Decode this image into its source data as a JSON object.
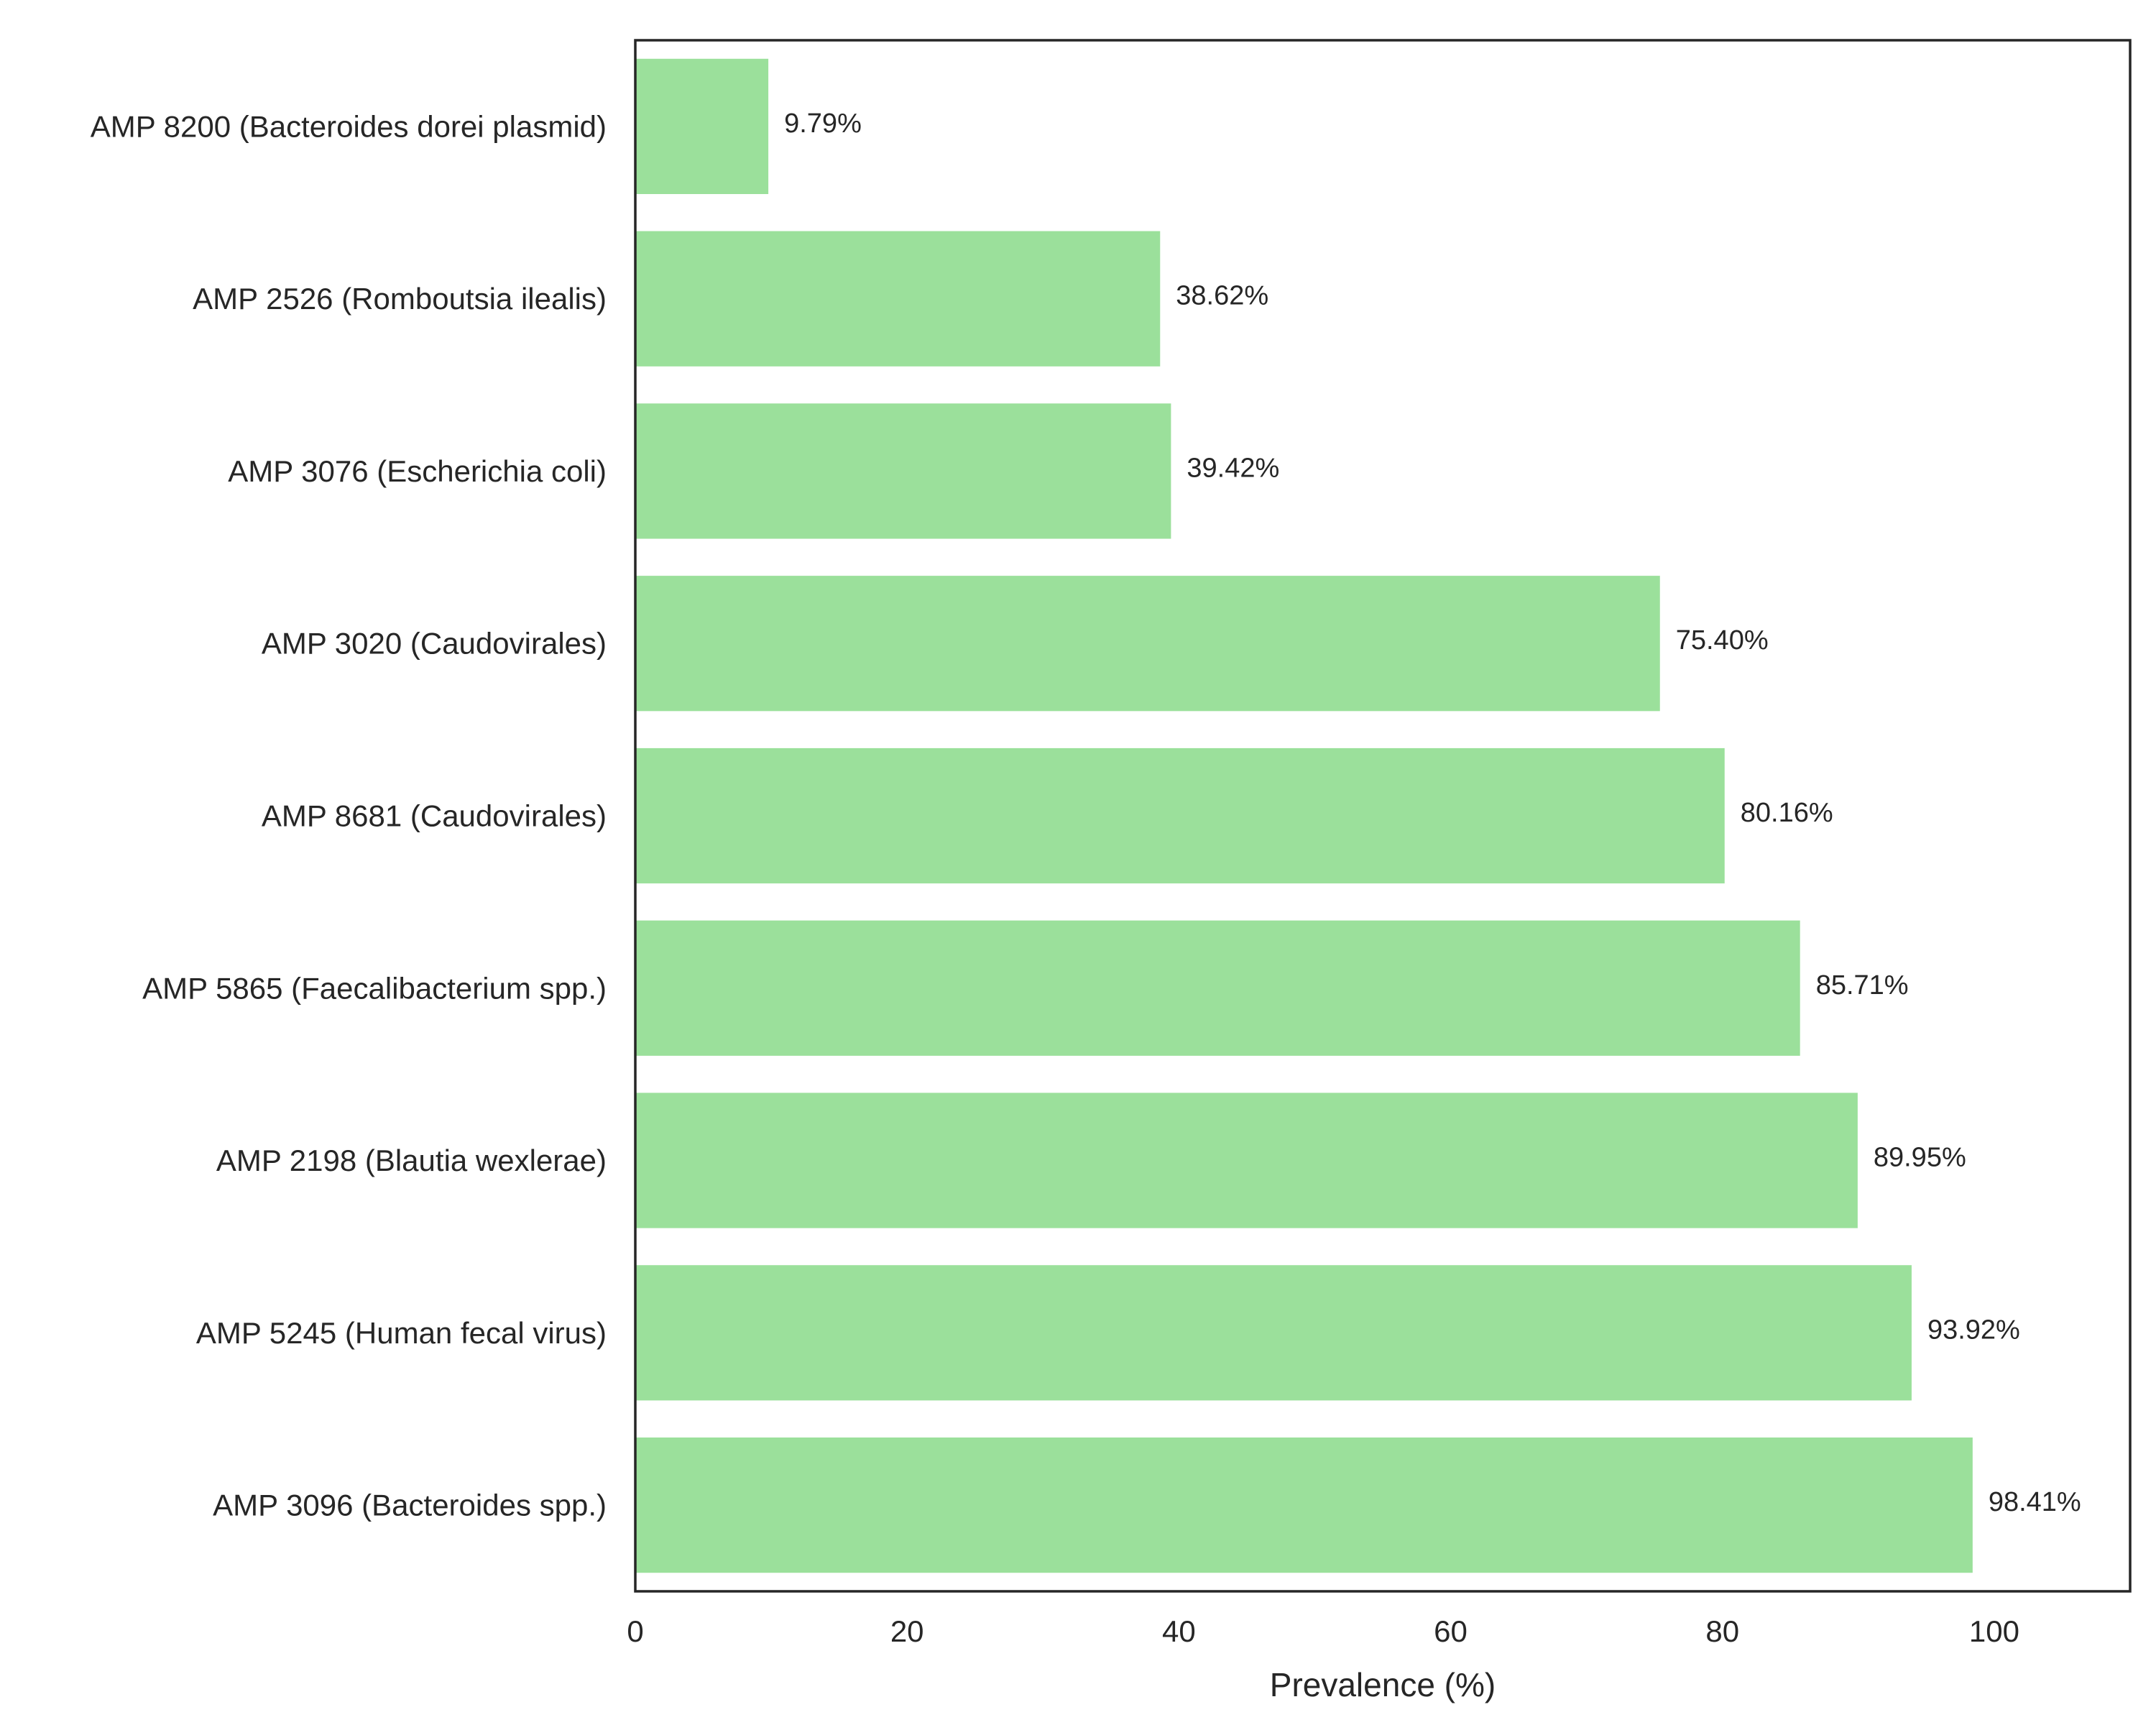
{
  "chart_data": {
    "type": "bar",
    "orientation": "horizontal",
    "categories": [
      "AMP 8200 (Bacteroides dorei plasmid)",
      "AMP 2526 (Romboutsia ilealis)",
      "AMP 3076 (Escherichia coli)",
      "AMP 3020 (Caudovirales)",
      "AMP 8681 (Caudovirales)",
      "AMP 5865 (Faecalibacterium spp.)",
      "AMP 2198 (Blautia wexlerae)",
      "AMP 5245 (Human fecal virus)",
      "AMP 3096 (Bacteroides spp.)"
    ],
    "values": [
      9.79,
      38.62,
      39.42,
      75.4,
      80.16,
      85.71,
      89.95,
      93.92,
      98.41
    ],
    "value_labels": [
      "9.79%",
      "38.62%",
      "39.42%",
      "75.40%",
      "80.16%",
      "85.71%",
      "89.95%",
      "93.92%",
      "98.41%"
    ],
    "title": "",
    "xlabel": "Prevalence (%)",
    "ylabel": "",
    "xlim": [
      0,
      110
    ],
    "xticks": [
      0,
      20,
      40,
      60,
      80,
      100
    ],
    "xtick_labels": [
      "0",
      "20",
      "40",
      "60",
      "80",
      "100"
    ],
    "grid": false,
    "legend": "none",
    "colors": {
      "bar": "#9be09b",
      "frame": "#262626",
      "text": "#262626",
      "background": "#ffffff"
    }
  }
}
